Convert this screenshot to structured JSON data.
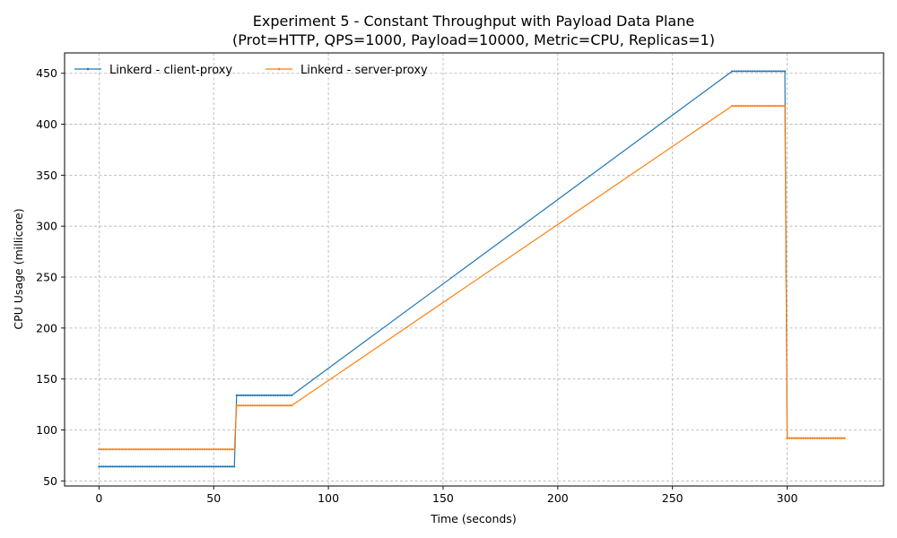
{
  "chart_data": {
    "type": "line",
    "title": "Experiment 5 - Constant Throughput with Payload Data Plane",
    "subtitle": "(Prot=HTTP, QPS=1000, Payload=10000, Metric=CPU, Replicas=1)",
    "xlabel": "Time (seconds)",
    "ylabel": "CPU Usage (millicore)",
    "xlim": [
      -15,
      342
    ],
    "ylim": [
      45,
      470
    ],
    "xticks": [
      0,
      50,
      100,
      150,
      200,
      250,
      300
    ],
    "yticks": [
      50,
      100,
      150,
      200,
      250,
      300,
      350,
      400,
      450
    ],
    "grid": true,
    "legend_position": "top-left",
    "series": [
      {
        "name": "Linkerd - client-proxy",
        "color": "#1f77b4",
        "x": [
          0,
          59,
          60,
          84,
          276,
          299,
          300,
          325
        ],
        "y": [
          64,
          64,
          134,
          134,
          452,
          452,
          92,
          92
        ]
      },
      {
        "name": "Linkerd - server-proxy",
        "color": "#ff7f0e",
        "x": [
          0,
          59,
          60,
          84,
          276,
          299,
          300,
          325
        ],
        "y": [
          81,
          81,
          124,
          124,
          418,
          418,
          92,
          92
        ]
      }
    ]
  }
}
